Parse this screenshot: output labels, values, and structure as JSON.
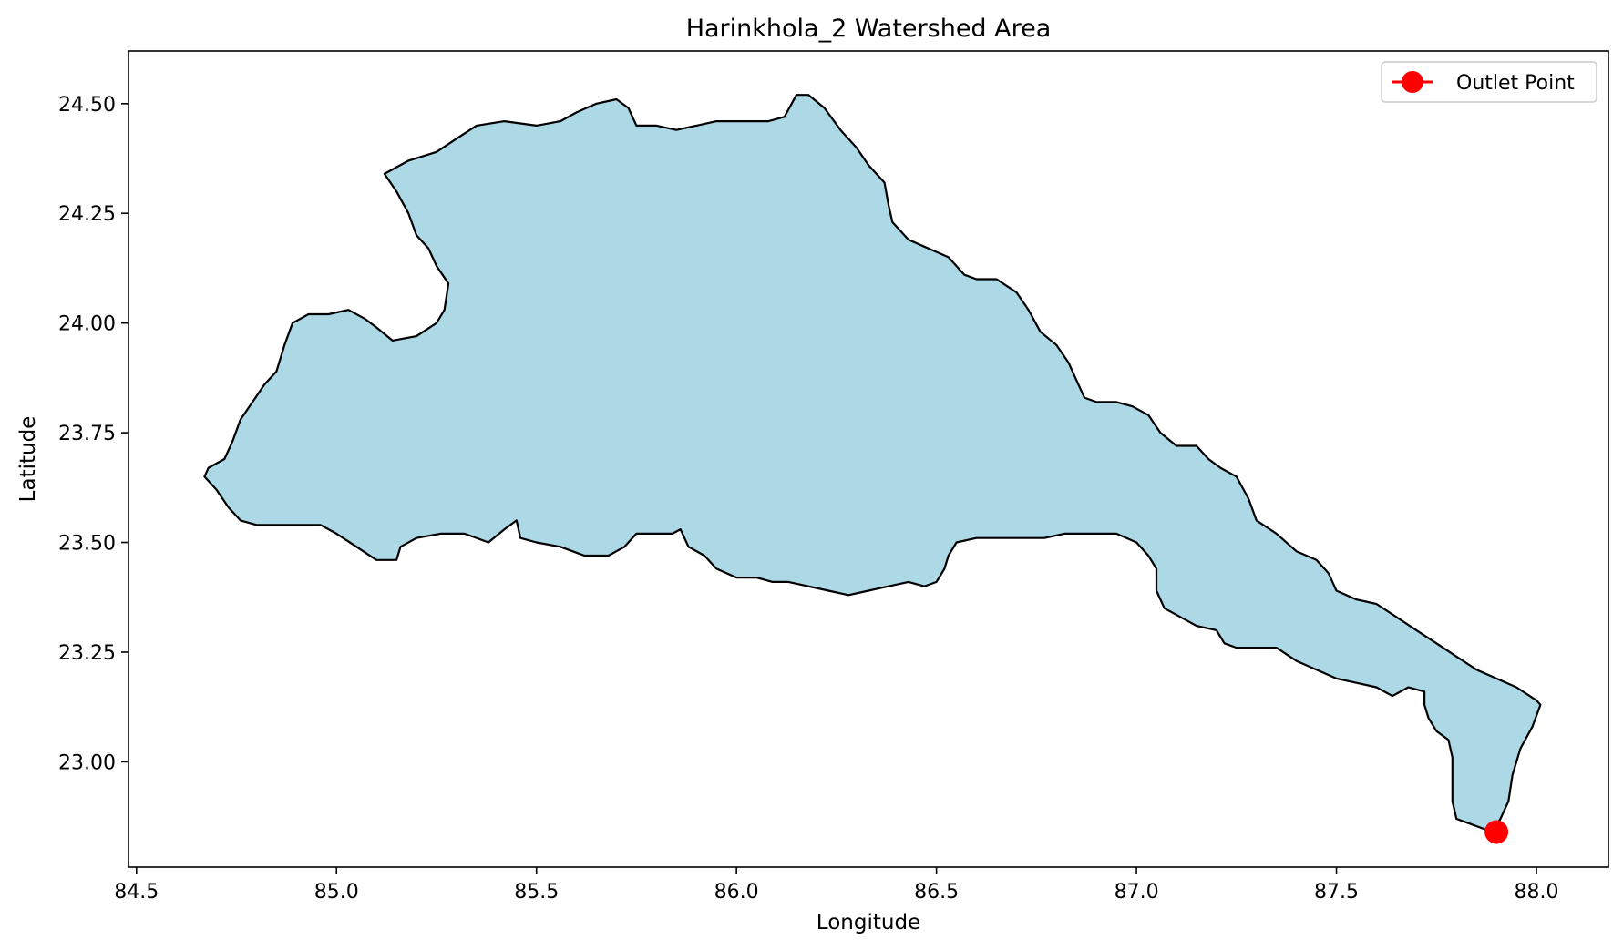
{
  "chart_data": {
    "type": "map",
    "title": "Harinkhola_2 Watershed Area",
    "xlabel": "Longitude",
    "ylabel": "Latitude",
    "xlim": [
      84.48,
      88.18
    ],
    "ylim": [
      22.76,
      24.62
    ],
    "xticks": [
      84.5,
      85.0,
      85.5,
      86.0,
      86.5,
      87.0,
      87.5,
      88.0
    ],
    "xtick_labels": [
      "84.5",
      "85.0",
      "85.5",
      "86.0",
      "86.5",
      "87.0",
      "87.5",
      "88.0"
    ],
    "yticks": [
      23.0,
      23.25,
      23.5,
      23.75,
      24.0,
      24.25,
      24.5
    ],
    "ytick_labels": [
      "23.00",
      "23.25",
      "23.50",
      "23.75",
      "24.00",
      "24.25",
      "24.50"
    ],
    "grid": false,
    "legend": {
      "position": "upper-right",
      "entries": [
        {
          "label": "Outlet Point",
          "color": "#ff0000",
          "marker": "circle-line"
        }
      ]
    },
    "watershed": {
      "fill": "#add8e6",
      "edge": "#000000",
      "boundary": [
        [
          84.67,
          23.65
        ],
        [
          84.68,
          23.67
        ],
        [
          84.72,
          23.69
        ],
        [
          84.74,
          23.73
        ],
        [
          84.76,
          23.78
        ],
        [
          84.79,
          23.82
        ],
        [
          84.82,
          23.86
        ],
        [
          84.85,
          23.89
        ],
        [
          84.87,
          23.95
        ],
        [
          84.89,
          24.0
        ],
        [
          84.93,
          24.02
        ],
        [
          84.98,
          24.02
        ],
        [
          85.03,
          24.03
        ],
        [
          85.07,
          24.01
        ],
        [
          85.1,
          23.99
        ],
        [
          85.14,
          23.96
        ],
        [
          85.2,
          23.97
        ],
        [
          85.25,
          24.0
        ],
        [
          85.27,
          24.03
        ],
        [
          85.28,
          24.09
        ],
        [
          85.25,
          24.13
        ],
        [
          85.23,
          24.17
        ],
        [
          85.2,
          24.2
        ],
        [
          85.18,
          24.25
        ],
        [
          85.15,
          24.3
        ],
        [
          85.12,
          24.34
        ],
        [
          85.18,
          24.37
        ],
        [
          85.25,
          24.39
        ],
        [
          85.3,
          24.42
        ],
        [
          85.35,
          24.45
        ],
        [
          85.42,
          24.46
        ],
        [
          85.5,
          24.45
        ],
        [
          85.56,
          24.46
        ],
        [
          85.6,
          24.48
        ],
        [
          85.65,
          24.5
        ],
        [
          85.7,
          24.51
        ],
        [
          85.73,
          24.49
        ],
        [
          85.75,
          24.45
        ],
        [
          85.8,
          24.45
        ],
        [
          85.85,
          24.44
        ],
        [
          85.9,
          24.45
        ],
        [
          85.95,
          24.46
        ],
        [
          86.02,
          24.46
        ],
        [
          86.08,
          24.46
        ],
        [
          86.12,
          24.47
        ],
        [
          86.15,
          24.52
        ],
        [
          86.18,
          24.52
        ],
        [
          86.22,
          24.49
        ],
        [
          86.26,
          24.44
        ],
        [
          86.3,
          24.4
        ],
        [
          86.33,
          24.36
        ],
        [
          86.37,
          24.32
        ],
        [
          86.38,
          24.27
        ],
        [
          86.39,
          24.23
        ],
        [
          86.43,
          24.19
        ],
        [
          86.48,
          24.17
        ],
        [
          86.53,
          24.15
        ],
        [
          86.57,
          24.11
        ],
        [
          86.6,
          24.1
        ],
        [
          86.65,
          24.1
        ],
        [
          86.7,
          24.07
        ],
        [
          86.73,
          24.03
        ],
        [
          86.76,
          23.98
        ],
        [
          86.8,
          23.95
        ],
        [
          86.83,
          23.91
        ],
        [
          86.85,
          23.87
        ],
        [
          86.87,
          23.83
        ],
        [
          86.9,
          23.82
        ],
        [
          86.95,
          23.82
        ],
        [
          86.99,
          23.81
        ],
        [
          87.03,
          23.79
        ],
        [
          87.06,
          23.75
        ],
        [
          87.1,
          23.72
        ],
        [
          87.15,
          23.72
        ],
        [
          87.18,
          23.69
        ],
        [
          87.21,
          23.67
        ],
        [
          87.25,
          23.65
        ],
        [
          87.28,
          23.6
        ],
        [
          87.3,
          23.55
        ],
        [
          87.35,
          23.52
        ],
        [
          87.4,
          23.48
        ],
        [
          87.45,
          23.46
        ],
        [
          87.48,
          23.43
        ],
        [
          87.5,
          23.39
        ],
        [
          87.55,
          23.37
        ],
        [
          87.6,
          23.36
        ],
        [
          87.65,
          23.33
        ],
        [
          87.7,
          23.3
        ],
        [
          87.75,
          23.27
        ],
        [
          87.8,
          23.24
        ],
        [
          87.85,
          23.21
        ],
        [
          87.9,
          23.19
        ],
        [
          87.95,
          23.17
        ],
        [
          88.0,
          23.14
        ],
        [
          88.01,
          23.13
        ],
        [
          87.99,
          23.08
        ],
        [
          87.96,
          23.03
        ],
        [
          87.94,
          22.97
        ],
        [
          87.93,
          22.91
        ],
        [
          87.91,
          22.87
        ],
        [
          87.89,
          22.84
        ],
        [
          87.86,
          22.85
        ],
        [
          87.83,
          22.86
        ],
        [
          87.8,
          22.87
        ],
        [
          87.79,
          22.91
        ],
        [
          87.79,
          22.96
        ],
        [
          87.79,
          23.01
        ],
        [
          87.78,
          23.05
        ],
        [
          87.75,
          23.07
        ],
        [
          87.73,
          23.1
        ],
        [
          87.72,
          23.13
        ],
        [
          87.72,
          23.16
        ],
        [
          87.68,
          23.17
        ],
        [
          87.64,
          23.15
        ],
        [
          87.6,
          23.17
        ],
        [
          87.55,
          23.18
        ],
        [
          87.5,
          23.19
        ],
        [
          87.45,
          23.21
        ],
        [
          87.4,
          23.23
        ],
        [
          87.35,
          23.26
        ],
        [
          87.3,
          23.26
        ],
        [
          87.25,
          23.26
        ],
        [
          87.22,
          23.27
        ],
        [
          87.2,
          23.3
        ],
        [
          87.15,
          23.31
        ],
        [
          87.11,
          23.33
        ],
        [
          87.07,
          23.35
        ],
        [
          87.05,
          23.39
        ],
        [
          87.05,
          23.44
        ],
        [
          87.03,
          23.47
        ],
        [
          87.0,
          23.5
        ],
        [
          86.95,
          23.52
        ],
        [
          86.9,
          23.52
        ],
        [
          86.82,
          23.52
        ],
        [
          86.77,
          23.51
        ],
        [
          86.7,
          23.51
        ],
        [
          86.66,
          23.51
        ],
        [
          86.6,
          23.51
        ],
        [
          86.55,
          23.5
        ],
        [
          86.53,
          23.47
        ],
        [
          86.52,
          23.44
        ],
        [
          86.5,
          23.41
        ],
        [
          86.47,
          23.4
        ],
        [
          86.43,
          23.41
        ],
        [
          86.38,
          23.4
        ],
        [
          86.33,
          23.39
        ],
        [
          86.28,
          23.38
        ],
        [
          86.23,
          23.39
        ],
        [
          86.18,
          23.4
        ],
        [
          86.13,
          23.41
        ],
        [
          86.09,
          23.41
        ],
        [
          86.05,
          23.42
        ],
        [
          86.0,
          23.42
        ],
        [
          85.95,
          23.44
        ],
        [
          85.92,
          23.47
        ],
        [
          85.88,
          23.49
        ],
        [
          85.86,
          23.53
        ],
        [
          85.84,
          23.52
        ],
        [
          85.8,
          23.52
        ],
        [
          85.75,
          23.52
        ],
        [
          85.72,
          23.49
        ],
        [
          85.68,
          23.47
        ],
        [
          85.62,
          23.47
        ],
        [
          85.56,
          23.49
        ],
        [
          85.5,
          23.5
        ],
        [
          85.46,
          23.51
        ],
        [
          85.45,
          23.55
        ],
        [
          85.42,
          23.53
        ],
        [
          85.38,
          23.5
        ],
        [
          85.32,
          23.52
        ],
        [
          85.26,
          23.52
        ],
        [
          85.2,
          23.51
        ],
        [
          85.16,
          23.49
        ],
        [
          85.15,
          23.46
        ],
        [
          85.1,
          23.46
        ],
        [
          85.05,
          23.49
        ],
        [
          85.0,
          23.52
        ],
        [
          84.96,
          23.54
        ],
        [
          84.9,
          23.54
        ],
        [
          84.85,
          23.54
        ],
        [
          84.8,
          23.54
        ],
        [
          84.76,
          23.55
        ],
        [
          84.73,
          23.58
        ],
        [
          84.7,
          23.62
        ],
        [
          84.67,
          23.65
        ]
      ]
    },
    "outlet_point": {
      "label": "Outlet Point",
      "lon": 87.9,
      "lat": 22.84,
      "color": "#ff0000"
    }
  }
}
